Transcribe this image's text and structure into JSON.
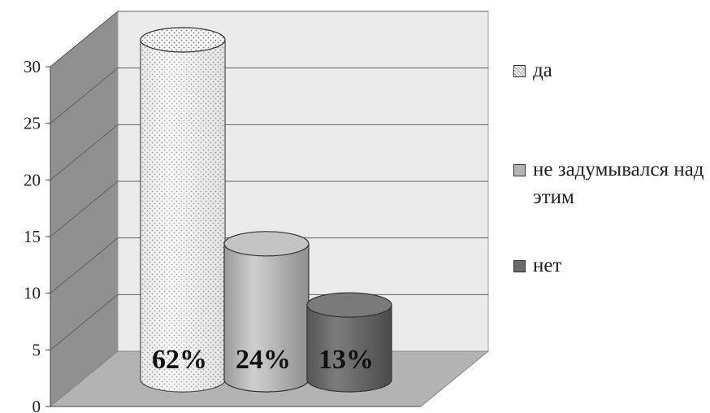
{
  "chart_data": {
    "type": "bar",
    "style": "3d-cylinder",
    "categories": [
      "да",
      "не задумывался над этим",
      "нет"
    ],
    "values": [
      30,
      12,
      6.6
    ],
    "data_labels": [
      "62%",
      "24%",
      "13%"
    ],
    "ylim": [
      0,
      30
    ],
    "yticks": [
      "0",
      "5",
      "10",
      "15",
      "20",
      "25",
      "30"
    ],
    "grid": true,
    "legend_position": "right",
    "legend": [
      "да",
      "не задумывался над этим",
      "нет"
    ],
    "colors": {
      "bar_0": "#f4f4f4",
      "bar_1": "#b5b5b5",
      "bar_2": "#6a6a6a",
      "back_wall": "#ebebeb",
      "side_wall": "#909090",
      "floor": "#b3b3b3",
      "gridline": "#606060"
    }
  }
}
